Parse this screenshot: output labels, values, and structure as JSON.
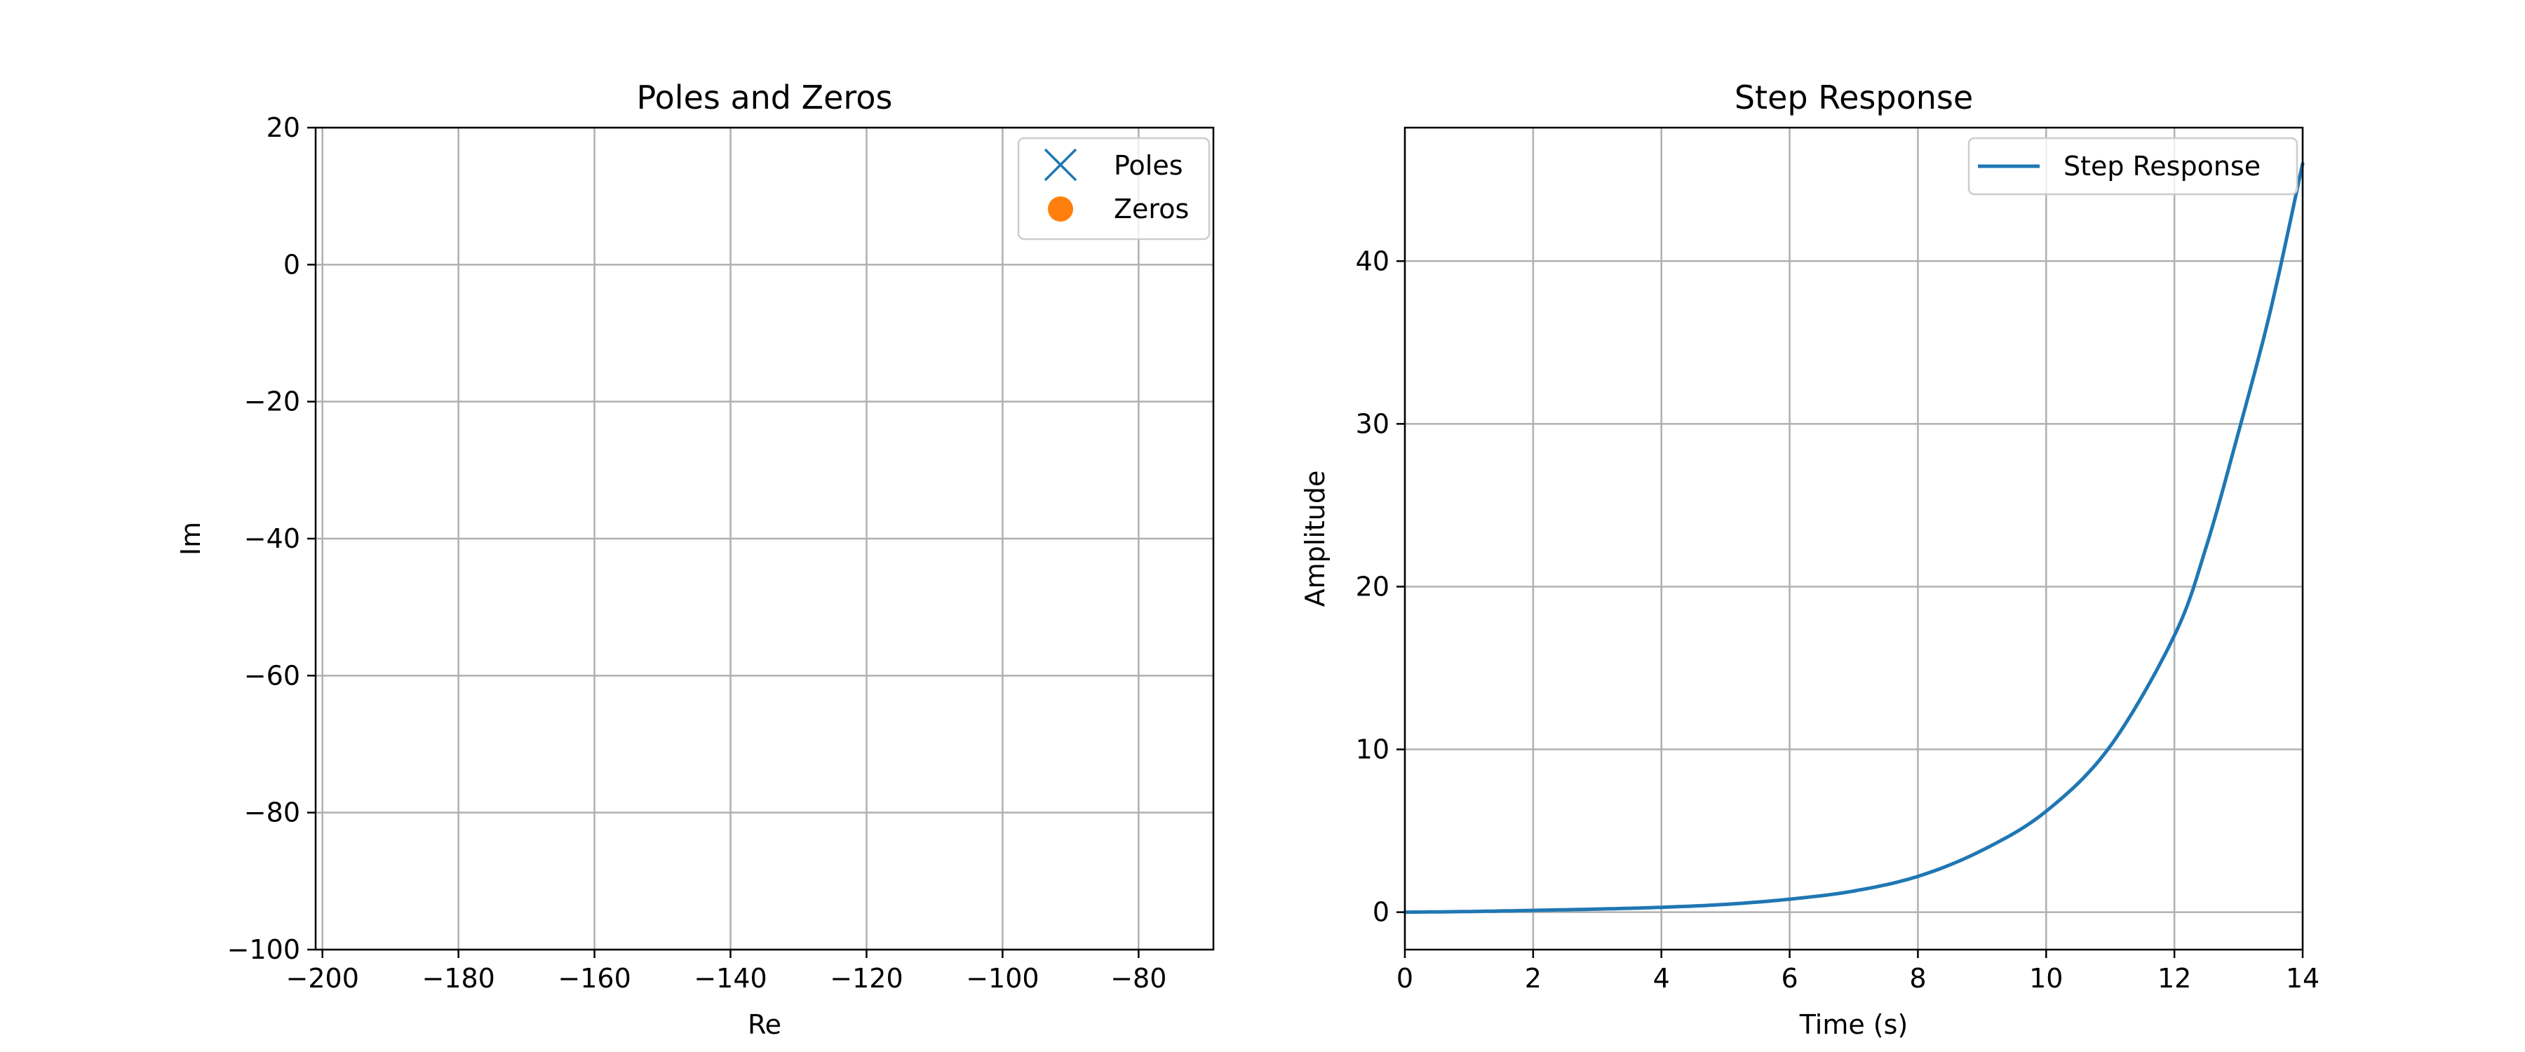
{
  "chart_data": [
    {
      "type": "scatter",
      "title": "Poles and Zeros",
      "xlabel": "Re",
      "ylabel": "Im",
      "xlim": [
        -201,
        -69
      ],
      "ylim": [
        -100,
        20
      ],
      "xticks": [
        -200,
        -180,
        -160,
        -140,
        -120,
        -100,
        -80
      ],
      "yticks": [
        20,
        0,
        -20,
        -40,
        -60,
        -80,
        -100
      ],
      "grid": true,
      "legend_position": "top-right",
      "series": [
        {
          "name": "Poles",
          "marker": "x",
          "color": "#1f77b4",
          "points": []
        },
        {
          "name": "Zeros",
          "marker": "o",
          "color": "#ff7f0e",
          "points": []
        }
      ]
    },
    {
      "type": "line",
      "title": "Step Response",
      "xlabel": "Time (s)",
      "ylabel": "Amplitude",
      "xlim": [
        0,
        14
      ],
      "ylim": [
        -2.3,
        48.2
      ],
      "xticks": [
        0,
        2,
        4,
        6,
        8,
        10,
        12,
        14
      ],
      "yticks": [
        0,
        10,
        20,
        30,
        40
      ],
      "grid": true,
      "legend_position": "top-right",
      "series": [
        {
          "name": "Step Response",
          "color": "#1f77b4",
          "x": [
            0,
            1,
            2,
            3,
            4,
            5,
            6,
            7,
            8,
            9,
            10,
            11,
            12,
            12.5,
            13,
            13.5,
            14
          ],
          "y": [
            0,
            0.04,
            0.11,
            0.19,
            0.3,
            0.48,
            0.8,
            1.3,
            2.2,
            3.8,
            6.2,
            10.2,
            17.0,
            22.5,
            29.5,
            37.0,
            46.0
          ]
        }
      ]
    }
  ]
}
